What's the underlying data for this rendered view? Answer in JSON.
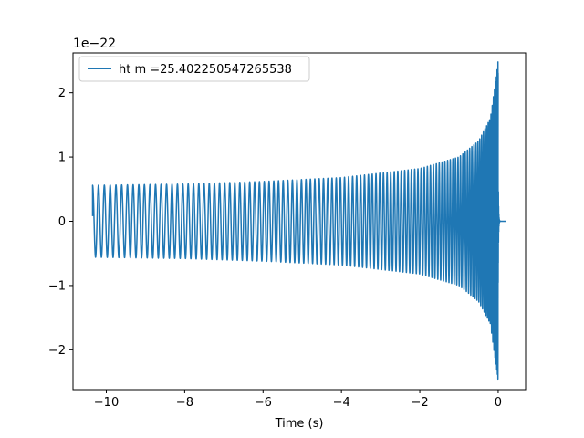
{
  "chart_data": {
    "type": "line",
    "title": "",
    "xlabel": "Time (s)",
    "ylabel": "",
    "y_offset_label": "1e−22",
    "xlim": [
      -10.85,
      0.7
    ],
    "ylim": [
      -2.62,
      2.62
    ],
    "x_ticks": [
      -10,
      -8,
      -6,
      -4,
      -2,
      0
    ],
    "x_tick_labels": [
      "−10",
      "−8",
      "−6",
      "−4",
      "−2",
      "0"
    ],
    "y_ticks": [
      -2,
      -1,
      0,
      1,
      2
    ],
    "y_tick_labels": [
      "−2",
      "−1",
      "0",
      "1",
      "2"
    ],
    "legend_position": "top-left",
    "grid": false,
    "series": [
      {
        "name": "ht m =25.402250547265538",
        "color": "#1f77b4",
        "t_start": -10.35,
        "t_merger": 0.0,
        "t_end": 0.2,
        "start_value": 0.08,
        "peak_positive": 2.48,
        "peak_negative": -2.38,
        "envelope": [
          {
            "t": -10.3,
            "a": 0.56
          },
          {
            "t": -8.0,
            "a": 0.58
          },
          {
            "t": -6.0,
            "a": 0.62
          },
          {
            "t": -4.0,
            "a": 0.68
          },
          {
            "t": -2.0,
            "a": 0.82
          },
          {
            "t": -1.0,
            "a": 1.0
          },
          {
            "t": -0.5,
            "a": 1.25
          },
          {
            "t": -0.2,
            "a": 1.6
          },
          {
            "t": 0.0,
            "a": 2.48
          }
        ]
      }
    ]
  }
}
